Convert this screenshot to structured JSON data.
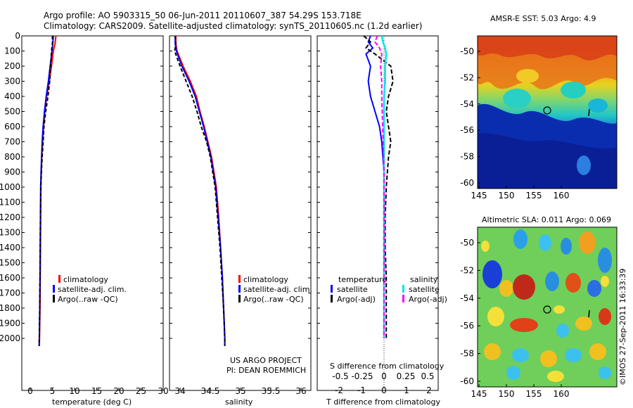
{
  "header": {
    "line1": "Argo profile: AO 5903315_50 06-Jun-2011 20110607_387 54.29S 153.718E",
    "line2": "Climatology: CARS2009. Satellite-adjusted climatology: synTS_20110605.nc (1.2d earlier)"
  },
  "colors": {
    "climatology": "#ff0000",
    "satellite": "#0000ff",
    "argo": "#000000",
    "sat_salinity": "#00e5ee",
    "argo_salinity": "#ff00ff"
  },
  "y_ticks": [
    "0",
    "100",
    "200",
    "300",
    "400",
    "500",
    "600",
    "700",
    "800",
    "900",
    "1000",
    "1100",
    "1200",
    "1300",
    "1400",
    "1500",
    "1600",
    "1700",
    "1800",
    "1900",
    "2000"
  ],
  "panel_temp": {
    "xlabel": "temperature (deg C)",
    "x_ticks": [
      "0",
      "5",
      "10",
      "15",
      "20",
      "25",
      "30"
    ],
    "legend": [
      "climatology",
      "satellite-adj. clim.",
      "Argo(..raw -QC)"
    ]
  },
  "panel_sal": {
    "xlabel": "salinity",
    "x_ticks": [
      "34",
      "34.5",
      "35",
      "35.5",
      "36"
    ],
    "legend": [
      "climatology",
      "satellite-adj. clim.",
      "Argo(..raw -QC)"
    ],
    "credit1": "US ARGO PROJECT",
    "credit2": "PI: DEAN ROEMMICH"
  },
  "panel_diff": {
    "legend_head_t": "temperature",
    "legend_head_s": "salinity",
    "legend_t": [
      "satellite",
      "Argo(-adj)"
    ],
    "legend_s": [
      "satellite",
      "Argo(-adj)"
    ],
    "top_label": "S difference from climatology",
    "s_ticks": [
      "-0.5",
      "-0.25",
      "0",
      "0.25",
      "0.5"
    ],
    "t_ticks": [
      "-2",
      "-1",
      "0",
      "1",
      "2"
    ],
    "xlabel": "T difference from climatology"
  },
  "map_sst": {
    "title": "AMSR-E SST: 5.03 Argo: 4.9",
    "y_ticks": [
      "-50",
      "-52",
      "-54",
      "-56",
      "-58",
      "-60"
    ],
    "x_ticks": [
      "145",
      "150",
      "155",
      "160"
    ]
  },
  "map_sla": {
    "title": "Altimetric SLA: 0.011 Argo: 0.069",
    "y_ticks": [
      "-50",
      "-52",
      "-54",
      "-56",
      "-58",
      "-60"
    ],
    "x_ticks": [
      "145",
      "150",
      "155",
      "160"
    ]
  },
  "stamp": "©IMOS 27-Sep-2011 16:33:39",
  "chart_data": [
    {
      "type": "line",
      "xlabel": "temperature (deg C)",
      "ylim": [
        2050,
        0
      ],
      "xlim": [
        -2,
        32
      ],
      "series": [
        {
          "name": "climatology",
          "x": [
            5.8,
            5.6,
            5.2,
            4.8,
            4.3,
            3.7,
            3.3,
            3.0,
            2.8,
            2.6,
            2.5,
            2.4,
            2.35,
            2.3,
            2.25,
            2.2,
            2.15,
            2.1,
            2.05
          ],
          "y": [
            0,
            50,
            100,
            200,
            300,
            400,
            500,
            600,
            700,
            800,
            900,
            1000,
            1200,
            1400,
            1600,
            1800,
            1900,
            2000,
            2050
          ]
        },
        {
          "name": "satellite-adj. clim.",
          "x": [
            5.2,
            5.1,
            4.9,
            4.5,
            4.1,
            3.6,
            3.2,
            2.9,
            2.7,
            2.55,
            2.45,
            2.35,
            2.3,
            2.25,
            2.2,
            2.15,
            2.1,
            2.05,
            2.0
          ],
          "y": [
            0,
            50,
            100,
            200,
            300,
            400,
            500,
            600,
            700,
            800,
            900,
            1000,
            1200,
            1400,
            1600,
            1800,
            1900,
            2000,
            2050
          ]
        },
        {
          "name": "Argo(..raw -QC)",
          "x": [
            5.0,
            5.0,
            4.8,
            4.6,
            4.4,
            4.0,
            3.5,
            3.1,
            2.9,
            2.7,
            2.5,
            2.4,
            2.3,
            2.25,
            2.2,
            2.15,
            2.1,
            2.05,
            2.0
          ],
          "y": [
            0,
            50,
            100,
            200,
            300,
            400,
            500,
            600,
            700,
            800,
            900,
            1000,
            1200,
            1400,
            1600,
            1800,
            1900,
            2000,
            2050
          ]
        }
      ]
    },
    {
      "type": "line",
      "xlabel": "salinity",
      "ylim": [
        2050,
        0
      ],
      "xlim": [
        33.8,
        36.1
      ],
      "series": [
        {
          "name": "climatology",
          "x": [
            33.93,
            33.93,
            33.95,
            34.05,
            34.17,
            34.27,
            34.33,
            34.4,
            34.46,
            34.52,
            34.56,
            34.6,
            34.64,
            34.67,
            34.7,
            34.72,
            34.73,
            34.74,
            34.74
          ],
          "y": [
            0,
            50,
            100,
            200,
            300,
            400,
            500,
            600,
            700,
            800,
            900,
            1000,
            1200,
            1400,
            1600,
            1800,
            1900,
            2000,
            2050
          ]
        },
        {
          "name": "satellite-adj. clim.",
          "x": [
            33.92,
            33.92,
            33.94,
            34.03,
            34.15,
            34.25,
            34.32,
            34.39,
            34.45,
            34.51,
            34.55,
            34.59,
            34.63,
            34.67,
            34.7,
            34.72,
            34.73,
            34.74,
            34.74
          ],
          "y": [
            0,
            50,
            100,
            200,
            300,
            400,
            500,
            600,
            700,
            800,
            900,
            1000,
            1200,
            1400,
            1600,
            1800,
            1900,
            2000,
            2050
          ]
        },
        {
          "name": "Argo(..raw -QC)",
          "x": [
            33.92,
            33.93,
            33.91,
            34.0,
            34.1,
            34.2,
            34.28,
            34.35,
            34.44,
            34.5,
            34.54,
            34.58,
            34.62,
            34.66,
            34.69,
            34.72,
            34.73,
            34.74,
            34.74
          ],
          "y": [
            0,
            50,
            100,
            200,
            300,
            400,
            500,
            600,
            700,
            800,
            900,
            1000,
            1200,
            1400,
            1600,
            1800,
            1900,
            2000,
            2050
          ]
        }
      ]
    },
    {
      "type": "line",
      "xlabel": "T difference from climatology",
      "ylim": [
        2050,
        0
      ],
      "xlim": [
        -2.5,
        2.5
      ],
      "series": [
        {
          "name": "satellite",
          "x": [
            -0.6,
            -0.7,
            -0.5,
            -0.8,
            -0.6,
            -0.7,
            -0.6,
            -0.4,
            -0.2,
            -0.1,
            -0.05,
            0,
            0,
            0,
            0,
            0,
            0,
            0,
            0
          ],
          "y": [
            0,
            40,
            80,
            120,
            200,
            300,
            400,
            500,
            600,
            700,
            800,
            900,
            1000,
            1200,
            1400,
            1600,
            1800,
            1900,
            2000
          ]
        },
        {
          "name": "Argo(-adj)",
          "x": [
            -0.9,
            -0.6,
            -0.8,
            -0.4,
            0.3,
            0.4,
            0.2,
            0.1,
            0.2,
            0.3,
            0.2,
            0.15,
            0.1,
            0.05,
            0.05,
            0.1,
            0.1,
            0.1,
            0.1
          ],
          "y": [
            0,
            40,
            80,
            120,
            200,
            300,
            400,
            500,
            600,
            700,
            800,
            900,
            1000,
            1200,
            1400,
            1600,
            1800,
            1900,
            2000
          ]
        },
        {
          "name": "satellite",
          "x": [
            -0.1,
            -0.05,
            0.05,
            0.1,
            0.05,
            0.05,
            0,
            0,
            0,
            0,
            0,
            0,
            0,
            0,
            0,
            0,
            0,
            0,
            0
          ],
          "y": [
            0,
            40,
            80,
            120,
            200,
            300,
            400,
            500,
            600,
            700,
            800,
            900,
            1000,
            1200,
            1400,
            1600,
            1800,
            1900,
            2000
          ]
        },
        {
          "name": "Argo(-adj)",
          "x": [
            -0.3,
            -0.4,
            -0.2,
            -0.1,
            -0.15,
            -0.1,
            -0.1,
            -0.08,
            -0.06,
            -0.04,
            -0.02,
            0,
            0,
            0,
            0,
            0,
            0,
            0,
            0
          ],
          "y": [
            0,
            40,
            80,
            120,
            200,
            300,
            400,
            500,
            600,
            700,
            800,
            900,
            1000,
            1200,
            1400,
            1600,
            1800,
            1900,
            2000
          ]
        }
      ]
    }
  ]
}
